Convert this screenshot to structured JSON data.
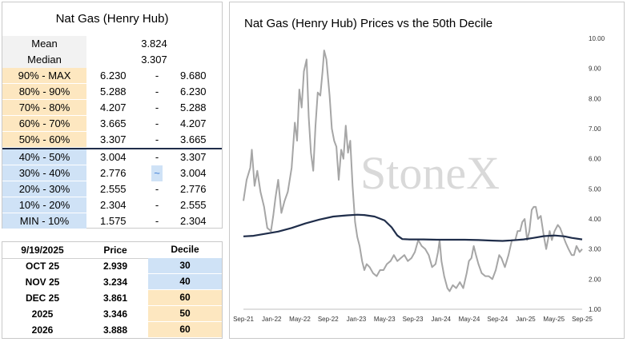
{
  "left_table": {
    "title": "Nat Gas (Henry Hub)",
    "mean_label": "Mean",
    "mean_value": "3.824",
    "median_label": "Median",
    "median_value": "3.307",
    "dash": "-",
    "highlight_dash": "~",
    "deciles": [
      {
        "label": "90% - MAX",
        "low": "6.230",
        "high": "9.680",
        "color": "#fde7c0"
      },
      {
        "label": "80% - 90%",
        "low": "5.288",
        "high": "6.230",
        "color": "#fde7c0"
      },
      {
        "label": "70% - 80%",
        "low": "4.207",
        "high": "5.288",
        "color": "#fde7c0"
      },
      {
        "label": "60% - 70%",
        "low": "3.665",
        "high": "4.207",
        "color": "#fde7c0"
      },
      {
        "label": "50% - 60%",
        "low": "3.307",
        "high": "3.665",
        "color": "#fde7c0"
      },
      {
        "label": "40% - 50%",
        "low": "3.004",
        "high": "3.307",
        "color": "#cfe2f6"
      },
      {
        "label": "30% - 40%",
        "low": "2.776",
        "high": "3.004",
        "color": "#cfe2f6"
      },
      {
        "label": "20% - 30%",
        "low": "2.555",
        "high": "2.776",
        "color": "#cfe2f6"
      },
      {
        "label": "10% - 20%",
        "low": "2.304",
        "high": "2.555",
        "color": "#cfe2f6"
      },
      {
        "label": "MIN - 10%",
        "low": "1.575",
        "high": "2.304",
        "color": "#cfe2f6"
      }
    ]
  },
  "price_table": {
    "header": {
      "date": "9/19/2025",
      "price": "Price",
      "decile": "Decile"
    },
    "rows": [
      {
        "contract": "OCT 25",
        "price": "2.939",
        "decile": "30",
        "color": "#cfe2f6"
      },
      {
        "contract": "NOV 25",
        "price": "3.234",
        "decile": "40",
        "color": "#cfe2f6"
      },
      {
        "contract": "DEC 25",
        "price": "3.861",
        "decile": "60",
        "color": "#fde7c0"
      },
      {
        "contract": "2025",
        "price": "3.346",
        "decile": "50",
        "color": "#fde7c0"
      },
      {
        "contract": "2026",
        "price": "3.888",
        "decile": "60",
        "color": "#fde7c0"
      }
    ]
  },
  "chart_data": {
    "type": "line",
    "title": "Nat Gas (Henry Hub) Prices vs the 50th Decile",
    "watermark": "StoneX",
    "ylim": [
      1.0,
      10.0
    ],
    "yticks": [
      "1.00",
      "2.00",
      "3.00",
      "4.00",
      "5.00",
      "6.00",
      "7.00",
      "8.00",
      "9.00",
      "10.00"
    ],
    "xlim": [
      "2021-09-01",
      "2025-09-30"
    ],
    "xticks": [
      "Sep-21",
      "Jan-22",
      "May-22",
      "Sep-22",
      "Jan-23",
      "May-23",
      "Sep-23",
      "Jan-24",
      "May-24",
      "Sep-24",
      "Jan-25",
      "May-25",
      "Sep-25"
    ],
    "grid": false,
    "series": [
      {
        "name": "",
        "color": "#a6a6a6",
        "points": [
          [
            "2021-09-01",
            4.6
          ],
          [
            "2021-09-15",
            5.3
          ],
          [
            "2021-10-01",
            5.7
          ],
          [
            "2021-10-08",
            6.3
          ],
          [
            "2021-10-20",
            5.1
          ],
          [
            "2021-11-01",
            5.6
          ],
          [
            "2021-11-15",
            4.9
          ],
          [
            "2021-12-01",
            4.4
          ],
          [
            "2021-12-15",
            3.7
          ],
          [
            "2021-12-31",
            3.6
          ],
          [
            "2022-01-10",
            4.1
          ],
          [
            "2022-01-20",
            4.7
          ],
          [
            "2022-02-01",
            5.3
          ],
          [
            "2022-02-15",
            4.2
          ],
          [
            "2022-03-01",
            4.6
          ],
          [
            "2022-03-15",
            4.9
          ],
          [
            "2022-04-01",
            5.7
          ],
          [
            "2022-04-15",
            7.2
          ],
          [
            "2022-04-25",
            6.6
          ],
          [
            "2022-05-05",
            8.3
          ],
          [
            "2022-05-15",
            7.7
          ],
          [
            "2022-05-25",
            8.9
          ],
          [
            "2022-06-06",
            9.3
          ],
          [
            "2022-06-15",
            7.4
          ],
          [
            "2022-06-25",
            6.2
          ],
          [
            "2022-07-05",
            5.6
          ],
          [
            "2022-07-15",
            7.1
          ],
          [
            "2022-07-25",
            8.2
          ],
          [
            "2022-08-05",
            8.1
          ],
          [
            "2022-08-15",
            8.9
          ],
          [
            "2022-08-22",
            9.6
          ],
          [
            "2022-09-01",
            9.3
          ],
          [
            "2022-09-15",
            8.1
          ],
          [
            "2022-09-25",
            7.0
          ],
          [
            "2022-10-05",
            6.6
          ],
          [
            "2022-10-15",
            6.4
          ],
          [
            "2022-10-25",
            5.3
          ],
          [
            "2022-11-05",
            6.3
          ],
          [
            "2022-11-15",
            6.0
          ],
          [
            "2022-11-25",
            7.1
          ],
          [
            "2022-12-05",
            6.2
          ],
          [
            "2022-12-15",
            6.6
          ],
          [
            "2022-12-25",
            5.1
          ],
          [
            "2023-01-05",
            3.9
          ],
          [
            "2023-01-15",
            3.4
          ],
          [
            "2023-01-25",
            3.1
          ],
          [
            "2023-02-05",
            2.6
          ],
          [
            "2023-02-15",
            2.3
          ],
          [
            "2023-02-25",
            2.5
          ],
          [
            "2023-03-10",
            2.4
          ],
          [
            "2023-03-25",
            2.2
          ],
          [
            "2023-04-10",
            2.1
          ],
          [
            "2023-04-25",
            2.3
          ],
          [
            "2023-05-10",
            2.3
          ],
          [
            "2023-05-25",
            2.5
          ],
          [
            "2023-06-10",
            2.6
          ],
          [
            "2023-06-25",
            2.8
          ],
          [
            "2023-07-10",
            2.6
          ],
          [
            "2023-07-25",
            2.7
          ],
          [
            "2023-08-10",
            2.8
          ],
          [
            "2023-08-25",
            2.6
          ],
          [
            "2023-09-10",
            2.7
          ],
          [
            "2023-09-25",
            2.9
          ],
          [
            "2023-10-10",
            3.3
          ],
          [
            "2023-10-25",
            3.1
          ],
          [
            "2023-11-10",
            3.0
          ],
          [
            "2023-11-25",
            2.8
          ],
          [
            "2023-12-10",
            2.4
          ],
          [
            "2023-12-25",
            2.5
          ],
          [
            "2024-01-05",
            2.9
          ],
          [
            "2024-01-12",
            3.3
          ],
          [
            "2024-01-20",
            2.6
          ],
          [
            "2024-02-01",
            2.1
          ],
          [
            "2024-02-15",
            1.7
          ],
          [
            "2024-02-25",
            1.6
          ],
          [
            "2024-03-10",
            1.8
          ],
          [
            "2024-03-25",
            1.7
          ],
          [
            "2024-04-10",
            1.9
          ],
          [
            "2024-04-25",
            1.7
          ],
          [
            "2024-05-10",
            2.2
          ],
          [
            "2024-05-20",
            2.6
          ],
          [
            "2024-05-31",
            2.7
          ],
          [
            "2024-06-10",
            3.1
          ],
          [
            "2024-06-20",
            2.8
          ],
          [
            "2024-07-01",
            2.5
          ],
          [
            "2024-07-15",
            2.2
          ],
          [
            "2024-07-31",
            2.1
          ],
          [
            "2024-08-15",
            2.1
          ],
          [
            "2024-08-31",
            2.0
          ],
          [
            "2024-09-15",
            2.3
          ],
          [
            "2024-09-30",
            2.8
          ],
          [
            "2024-10-10",
            2.7
          ],
          [
            "2024-10-25",
            2.4
          ],
          [
            "2024-11-10",
            2.8
          ],
          [
            "2024-11-25",
            3.3
          ],
          [
            "2024-12-10",
            3.3
          ],
          [
            "2024-12-20",
            3.6
          ],
          [
            "2024-12-31",
            3.6
          ],
          [
            "2025-01-10",
            3.9
          ],
          [
            "2025-01-20",
            4.0
          ],
          [
            "2025-01-31",
            3.3
          ],
          [
            "2025-02-10",
            3.6
          ],
          [
            "2025-02-20",
            4.3
          ],
          [
            "2025-03-01",
            4.4
          ],
          [
            "2025-03-10",
            4.4
          ],
          [
            "2025-03-20",
            4.0
          ],
          [
            "2025-04-01",
            4.1
          ],
          [
            "2025-04-15",
            3.4
          ],
          [
            "2025-04-25",
            3.0
          ],
          [
            "2025-05-10",
            3.6
          ],
          [
            "2025-05-20",
            3.3
          ],
          [
            "2025-06-01",
            3.6
          ],
          [
            "2025-06-15",
            3.8
          ],
          [
            "2025-06-25",
            3.7
          ],
          [
            "2025-07-10",
            3.4
          ],
          [
            "2025-07-20",
            3.2
          ],
          [
            "2025-08-01",
            3.0
          ],
          [
            "2025-08-15",
            2.8
          ],
          [
            "2025-08-25",
            2.8
          ],
          [
            "2025-09-05",
            3.1
          ],
          [
            "2025-09-19",
            2.9
          ],
          [
            "2025-09-30",
            3.0
          ]
        ]
      },
      {
        "name": "",
        "color": "#1f2d4a",
        "points": [
          [
            "2021-09-01",
            3.42
          ],
          [
            "2021-10-15",
            3.44
          ],
          [
            "2021-12-01",
            3.5
          ],
          [
            "2022-02-01",
            3.58
          ],
          [
            "2022-04-01",
            3.7
          ],
          [
            "2022-06-01",
            3.85
          ],
          [
            "2022-08-01",
            3.98
          ],
          [
            "2022-10-01",
            4.08
          ],
          [
            "2022-12-01",
            4.12
          ],
          [
            "2023-01-15",
            4.14
          ],
          [
            "2023-02-15",
            4.13
          ],
          [
            "2023-04-01",
            4.08
          ],
          [
            "2023-05-15",
            3.95
          ],
          [
            "2023-06-15",
            3.72
          ],
          [
            "2023-07-10",
            3.45
          ],
          [
            "2023-08-01",
            3.33
          ],
          [
            "2023-09-01",
            3.32
          ],
          [
            "2023-11-01",
            3.32
          ],
          [
            "2024-01-01",
            3.31
          ],
          [
            "2024-03-01",
            3.31
          ],
          [
            "2024-05-01",
            3.31
          ],
          [
            "2024-07-01",
            3.3
          ],
          [
            "2024-09-01",
            3.28
          ],
          [
            "2024-10-15",
            3.27
          ],
          [
            "2024-12-01",
            3.29
          ],
          [
            "2025-01-15",
            3.32
          ],
          [
            "2025-03-01",
            3.37
          ],
          [
            "2025-04-15",
            3.43
          ],
          [
            "2025-06-01",
            3.45
          ],
          [
            "2025-07-15",
            3.42
          ],
          [
            "2025-08-15",
            3.37
          ],
          [
            "2025-09-30",
            3.32
          ]
        ]
      }
    ]
  }
}
